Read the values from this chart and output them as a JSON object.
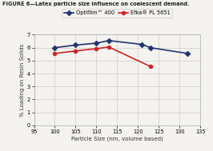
{
  "title": "FIGURE 6—Latex particle size influence on coalescent demand.",
  "xlabel": "Particle Size (nm, volume based)",
  "ylabel": "% Loading on Resin Solids",
  "xlim": [
    95,
    135
  ],
  "ylim": [
    0,
    7
  ],
  "xticks": [
    95,
    100,
    105,
    110,
    115,
    120,
    125,
    130,
    135
  ],
  "yticks": [
    0,
    1,
    2,
    3,
    4,
    5,
    6,
    7
  ],
  "series": [
    {
      "label": "Optifilm™ 400",
      "x": [
        100,
        105,
        110,
        113,
        121,
        123,
        132
      ],
      "y": [
        6.0,
        6.2,
        6.35,
        6.55,
        6.25,
        6.0,
        5.55
      ],
      "color": "#1f3370",
      "marker": "D",
      "linestyle": "-",
      "linewidth": 1.2,
      "markersize": 3.5
    },
    {
      "label": "Efka® PL 5651",
      "x": [
        100,
        105,
        110,
        113,
        123
      ],
      "y": [
        5.55,
        5.75,
        5.92,
        6.05,
        4.55
      ],
      "color": "#cc2222",
      "marker": "o",
      "linestyle": "-",
      "linewidth": 1.2,
      "markersize": 3.5
    }
  ],
  "plot_bg_color": "#f5f3ef",
  "fig_bg_color": "#f5f3ef",
  "title_fontsize": 4.8,
  "axis_label_fontsize": 5.0,
  "tick_fontsize": 4.8,
  "legend_fontsize": 4.8,
  "grid_color": "#d0ccc8",
  "title_color": "#222222"
}
